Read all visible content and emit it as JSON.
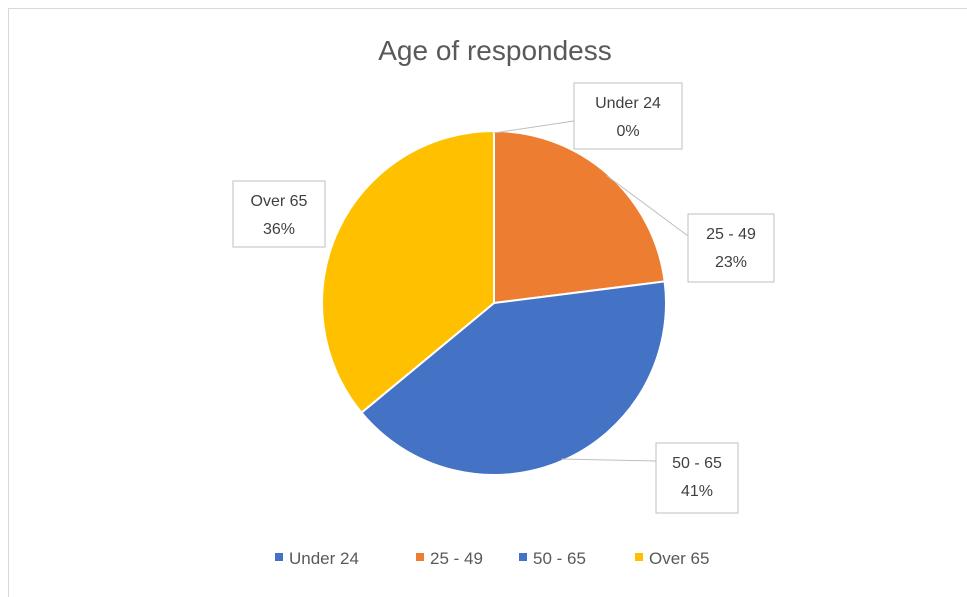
{
  "chart_data": {
    "type": "pie",
    "title": "Age of respondess",
    "categories": [
      "Under 24",
      "25 - 49",
      "50 - 65",
      "Over 65"
    ],
    "values": [
      0,
      23,
      41,
      36
    ],
    "value_labels": [
      "0%",
      "23%",
      "41%",
      "36%"
    ],
    "colors": [
      "#4472c4",
      "#ed7d31",
      "#4472c4",
      "#ffc000"
    ],
    "legend_position": "bottom",
    "data_labels": "callout boxes with category name and percentage"
  }
}
